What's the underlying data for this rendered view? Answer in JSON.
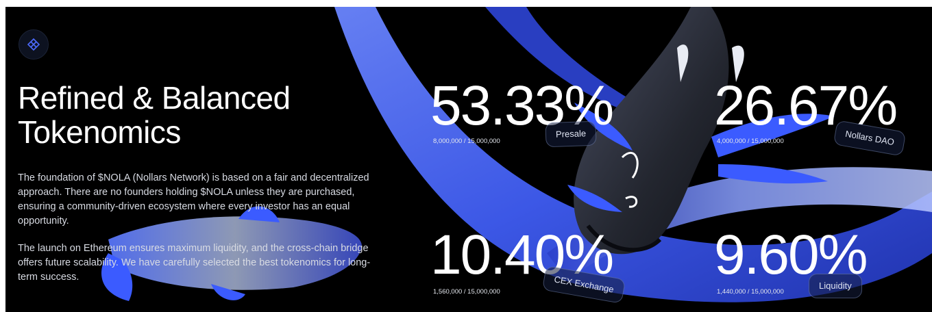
{
  "section": {
    "badge_icon": "diamond-grid-icon",
    "title_line1": "Refined & Balanced",
    "title_line2": "Tokenomics",
    "paragraphs": [
      "The foundation of $NOLA (Nollars Network) is based on a fair and decentralized approach. There are no founders holding $NOLA unless they are purchased, ensuring a community-driven ecosystem where every investor has an equal opportunity.",
      "The launch on Ethereum ensures maximum liquidity, and the cross-chain bridge offers future scalability. We have carefully selected the best tokenomics for long-term success."
    ]
  },
  "allocations": [
    {
      "percent": "53.33%",
      "amount": "8,000,000 / 15,000,000",
      "label": "Presale"
    },
    {
      "percent": "26.67%",
      "amount": "4,000,000 / 15,000,000",
      "label": "Nollars DAO"
    },
    {
      "percent": "10.40%",
      "amount": "1,560,000 / 15,000,000",
      "label": "CEX Exchange"
    },
    {
      "percent": "9.60%",
      "amount": "1,440,000 / 15,000,000",
      "label": "Liquidity"
    }
  ],
  "colors": {
    "accent": "#3b5bff",
    "background": "#000000",
    "text": "#ffffff"
  }
}
